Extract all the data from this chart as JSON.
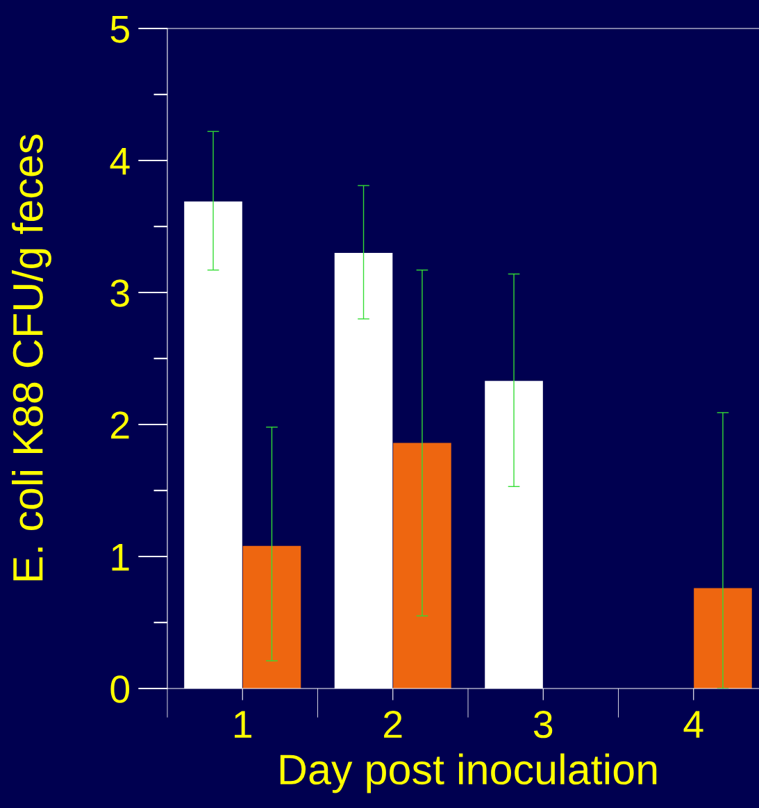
{
  "chart_data": {
    "type": "bar",
    "xlabel": "Day post inoculation",
    "ylabel": "E. coli K88 CFU/g feces",
    "categories": [
      "1",
      "2",
      "3",
      "4"
    ],
    "series": [
      {
        "color": "#ffffff",
        "values": [
          3.69,
          3.3,
          2.33,
          0
        ],
        "errors": [
          [
            3.17,
            4.22
          ],
          [
            2.8,
            3.81
          ],
          [
            1.53,
            3.14
          ],
          null
        ]
      },
      {
        "color": "#ee6610",
        "values": [
          1.08,
          1.86,
          0,
          0.76
        ],
        "errors": [
          [
            0.21,
            1.98
          ],
          [
            0.55,
            3.17
          ],
          null,
          [
            0,
            2.09
          ]
        ]
      }
    ],
    "ylim": [
      0,
      5
    ],
    "yticks": [
      0,
      1,
      2,
      3,
      4,
      5
    ],
    "grid": false,
    "legend": false
  }
}
